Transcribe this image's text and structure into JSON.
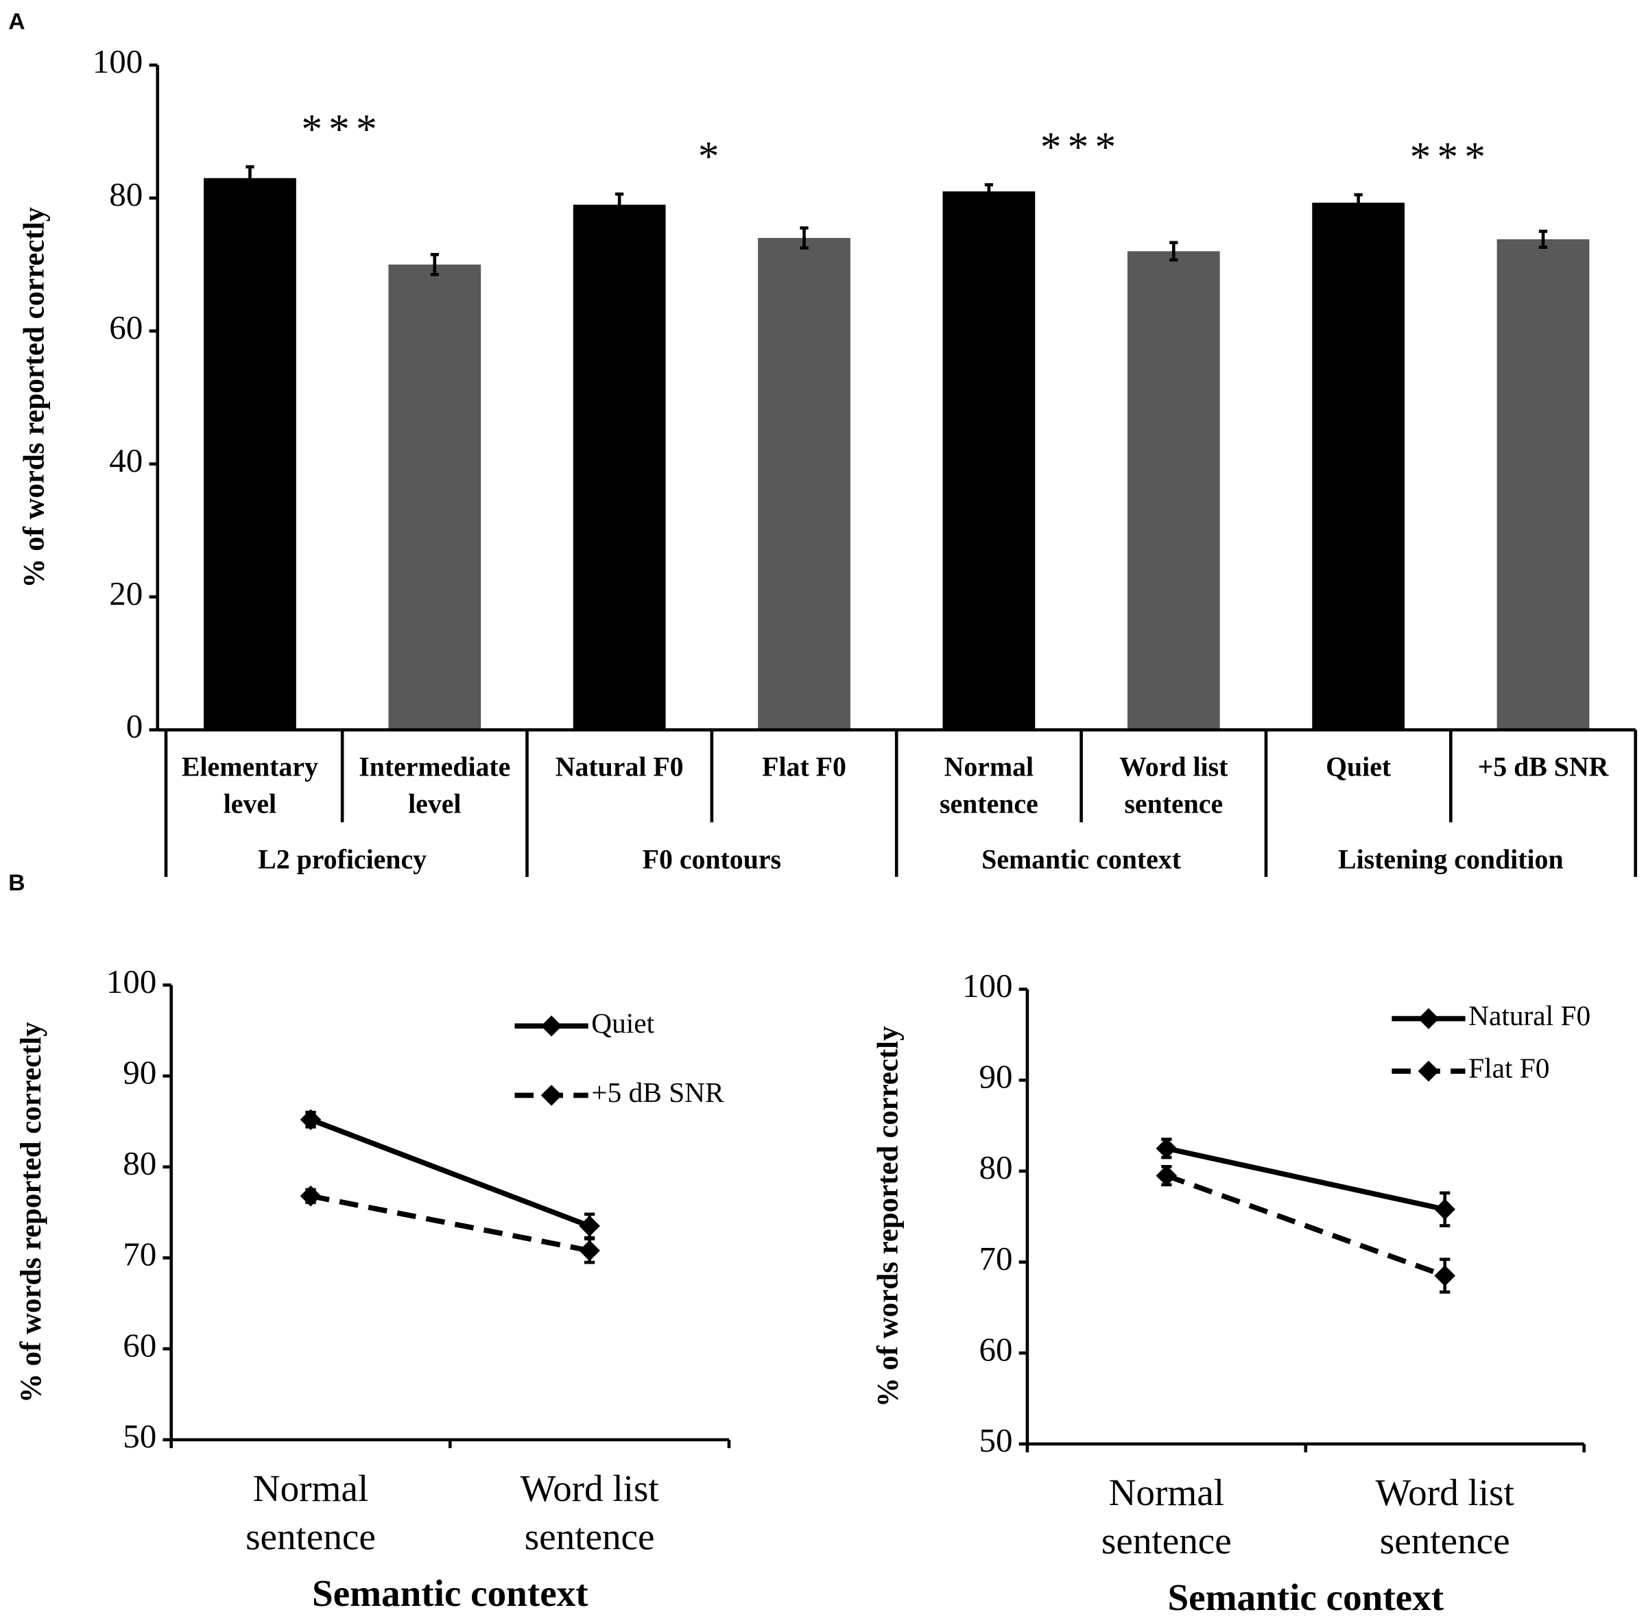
{
  "panel_labels": [
    "A",
    "B"
  ],
  "chart_data": [
    {
      "type": "bar",
      "ylabel": "% of words reported correctly",
      "categories": [
        [
          "Elementary",
          "level"
        ],
        [
          "Intermediate",
          "level"
        ],
        [
          "Natural F0"
        ],
        [
          "Flat F0"
        ],
        [
          "Normal",
          "sentence"
        ],
        [
          "Word list",
          "sentence"
        ],
        [
          "Quiet"
        ],
        [
          "+5 dB SNR"
        ]
      ],
      "values": [
        83,
        70,
        79,
        74,
        81,
        72,
        79.3,
        73.8
      ],
      "errors": [
        1.7,
        1.5,
        1.6,
        1.5,
        1.0,
        1.3,
        1.2,
        1.2
      ],
      "colors": [
        "#000000",
        "#595959",
        "#000000",
        "#595959",
        "#000000",
        "#595959",
        "#000000",
        "#595959"
      ],
      "groups": [
        {
          "name": "L2 proficiency",
          "annotation": "***"
        },
        {
          "name": "F0 contours",
          "annotation": "*"
        },
        {
          "name": "Semantic context",
          "annotation": "***"
        },
        {
          "name": "Listening condition",
          "annotation": "***"
        }
      ],
      "ylim": [
        0,
        100
      ],
      "yticks": [
        0,
        20,
        40,
        60,
        80,
        100
      ]
    },
    {
      "type": "line",
      "ylabel": "% of words reported correctly",
      "xlabel": "Semantic context",
      "categories": [
        [
          "Normal",
          "sentence"
        ],
        [
          "Word list",
          "sentence"
        ]
      ],
      "series": [
        {
          "name": "Quiet",
          "color": "#000000",
          "linestyle": "solid",
          "values": [
            85.2,
            73.5
          ],
          "errors": [
            0.8,
            1.3
          ]
        },
        {
          "name": "+5 dB SNR",
          "color": "#000000",
          "linestyle": "dashed",
          "values": [
            76.8,
            70.8
          ],
          "errors": [
            0.7,
            1.3
          ]
        }
      ],
      "ylim": [
        50,
        100
      ],
      "yticks": [
        50,
        60,
        70,
        80,
        90,
        100
      ],
      "legend": "upper right"
    },
    {
      "type": "line",
      "ylabel": "% of words reported correctly",
      "xlabel": "Semantic context",
      "categories": [
        [
          "Normal",
          "sentence"
        ],
        [
          "Word list",
          "sentence"
        ]
      ],
      "series": [
        {
          "name": "Natural F0",
          "color": "#000000",
          "linestyle": "solid",
          "values": [
            82.5,
            75.8
          ],
          "errors": [
            1.0,
            1.8
          ]
        },
        {
          "name": "Flat F0",
          "color": "#000000",
          "linestyle": "dashed",
          "values": [
            79.5,
            68.5
          ],
          "errors": [
            1.0,
            1.8
          ]
        }
      ],
      "ylim": [
        50,
        100
      ],
      "yticks": [
        50,
        60,
        70,
        80,
        90,
        100
      ],
      "legend": "upper right"
    }
  ]
}
